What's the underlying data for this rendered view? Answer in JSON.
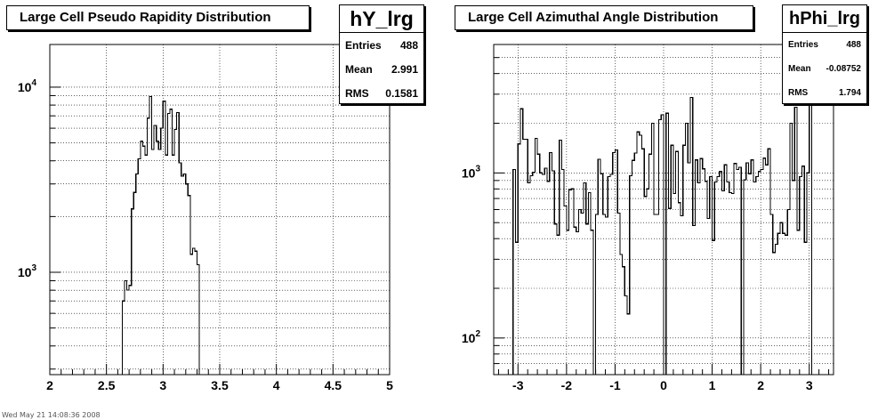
{
  "footer_text": "Wed May 21 14:08:36 2008",
  "chart_data": [
    {
      "type": "histogram",
      "title": "Large Cell Pseudo Rapidity Distribution",
      "stats": {
        "name": "hY_lrg",
        "entries_label": "Entries",
        "entries": "488",
        "mean_label": "Mean",
        "mean": "2.991",
        "rms_label": "RMS",
        "rms": "0.1581"
      },
      "xlim": [
        2,
        5
      ],
      "ylim": [
        280,
        17000
      ],
      "log_y": true,
      "x_ticks": [
        "2",
        "2.5",
        "3",
        "3.5",
        "4",
        "4.5",
        "5"
      ],
      "y_tick_labels": [
        {
          "v": 1000,
          "label": "10^3"
        },
        {
          "v": 10000,
          "label": "10^4"
        }
      ],
      "grid": true,
      "bins": [
        [
          2.6,
          2.64,
          0
        ],
        [
          2.64,
          2.66,
          700
        ],
        [
          2.66,
          2.68,
          900
        ],
        [
          2.68,
          2.7,
          800
        ],
        [
          2.7,
          2.72,
          850
        ],
        [
          2.72,
          2.74,
          2200
        ],
        [
          2.74,
          2.76,
          2700
        ],
        [
          2.76,
          2.78,
          3400
        ],
        [
          2.78,
          2.8,
          4100
        ],
        [
          2.8,
          2.82,
          5100
        ],
        [
          2.82,
          2.84,
          4800
        ],
        [
          2.84,
          2.86,
          4300
        ],
        [
          2.86,
          2.88,
          6800
        ],
        [
          2.88,
          2.9,
          8900
        ],
        [
          2.9,
          2.92,
          4600
        ],
        [
          2.92,
          2.94,
          6200
        ],
        [
          2.94,
          2.96,
          5100
        ],
        [
          2.96,
          2.98,
          4600
        ],
        [
          2.98,
          3.0,
          6000
        ],
        [
          3.0,
          3.02,
          8400
        ],
        [
          3.02,
          3.04,
          4300
        ],
        [
          3.04,
          3.06,
          7200
        ],
        [
          3.06,
          3.08,
          7600
        ],
        [
          3.08,
          3.1,
          4300
        ],
        [
          3.1,
          3.12,
          5900
        ],
        [
          3.12,
          3.14,
          7300
        ],
        [
          3.14,
          3.16,
          3900
        ],
        [
          3.16,
          3.18,
          3300
        ],
        [
          3.18,
          3.2,
          3400
        ],
        [
          3.2,
          3.22,
          3000
        ],
        [
          3.22,
          3.24,
          2600
        ],
        [
          3.24,
          3.26,
          1250
        ],
        [
          3.26,
          3.28,
          1350
        ],
        [
          3.28,
          3.3,
          1300
        ],
        [
          3.3,
          3.32,
          1100
        ],
        [
          3.32,
          3.34,
          200
        ]
      ]
    },
    {
      "type": "histogram",
      "title": "Large Cell Azimuthal Angle Distribution",
      "stats": {
        "name": "hPhi_lrg",
        "entries_label": "Entries",
        "entries": "488",
        "mean_label": "Mean",
        "mean": "-0.08752",
        "rms_label": "RMS",
        "rms": "1.794"
      },
      "xlim": [
        -3.5,
        3.5
      ],
      "ylim": [
        60,
        6000
      ],
      "log_y": true,
      "x_ticks": [
        "-3",
        "-2",
        "-1",
        "0",
        "1",
        "2",
        "3"
      ],
      "y_tick_labels": [
        {
          "v": 100,
          "label": "10^2"
        },
        {
          "v": 1000,
          "label": "10^3"
        }
      ],
      "grid": true,
      "bins": [
        [
          -3.16,
          -3.1,
          40
        ],
        [
          -3.1,
          -3.05,
          1050
        ],
        [
          -3.05,
          -3.0,
          380
        ],
        [
          -3.0,
          -2.95,
          1500
        ],
        [
          -2.95,
          -2.9,
          2450
        ],
        [
          -2.9,
          -2.8,
          1600
        ],
        [
          -2.8,
          -2.75,
          870
        ],
        [
          -2.75,
          -2.7,
          960
        ],
        [
          -2.7,
          -2.65,
          1010
        ],
        [
          -2.65,
          -2.6,
          1620
        ],
        [
          -2.6,
          -2.55,
          1300
        ],
        [
          -2.55,
          -2.5,
          1000
        ],
        [
          -2.5,
          -2.45,
          980
        ],
        [
          -2.45,
          -2.4,
          1070
        ],
        [
          -2.4,
          -2.35,
          890
        ],
        [
          -2.35,
          -2.3,
          1330
        ],
        [
          -2.3,
          -2.25,
          1030
        ],
        [
          -2.25,
          -2.2,
          490
        ],
        [
          -2.2,
          -2.15,
          420
        ],
        [
          -2.15,
          -2.1,
          1580
        ],
        [
          -2.1,
          -2.05,
          1050
        ],
        [
          -2.05,
          -2.0,
          630
        ],
        [
          -2.0,
          -1.95,
          450
        ],
        [
          -1.95,
          -1.9,
          790
        ],
        [
          -1.9,
          -1.85,
          800
        ],
        [
          -1.85,
          -1.8,
          470
        ],
        [
          -1.8,
          -1.75,
          440
        ],
        [
          -1.75,
          -1.7,
          600
        ],
        [
          -1.7,
          -1.65,
          570
        ],
        [
          -1.65,
          -1.6,
          870
        ],
        [
          -1.6,
          -1.55,
          490
        ],
        [
          -1.55,
          -1.5,
          760
        ],
        [
          -1.5,
          -1.45,
          450
        ],
        [
          -1.45,
          -1.4,
          35
        ],
        [
          -1.4,
          -1.35,
          560
        ],
        [
          -1.35,
          -1.3,
          1210
        ],
        [
          -1.3,
          -1.25,
          990
        ],
        [
          -1.25,
          -1.2,
          560
        ],
        [
          -1.2,
          -1.15,
          540
        ],
        [
          -1.15,
          -1.1,
          950
        ],
        [
          -1.1,
          -1.05,
          980
        ],
        [
          -1.05,
          -1.0,
          1330
        ],
        [
          -1.0,
          -0.95,
          1380
        ],
        [
          -0.95,
          -0.9,
          570
        ],
        [
          -0.9,
          -0.85,
          320
        ],
        [
          -0.85,
          -0.8,
          270
        ],
        [
          -0.8,
          -0.75,
          180
        ],
        [
          -0.75,
          -0.7,
          140
        ],
        [
          -0.7,
          -0.65,
          960
        ],
        [
          -0.65,
          -0.6,
          1190
        ],
        [
          -0.6,
          -0.55,
          1320
        ],
        [
          -0.55,
          -0.5,
          1770
        ],
        [
          -0.5,
          -0.45,
          1690
        ],
        [
          -0.45,
          -0.4,
          1400
        ],
        [
          -0.4,
          -0.35,
          720
        ],
        [
          -0.35,
          -0.3,
          800
        ],
        [
          -0.3,
          -0.25,
          1300
        ],
        [
          -0.25,
          -0.2,
          2000
        ],
        [
          -0.2,
          -0.15,
          560
        ],
        [
          -0.15,
          -0.1,
          560
        ],
        [
          -0.1,
          -0.05,
          2100
        ],
        [
          -0.05,
          0.0,
          2250
        ],
        [
          0.0,
          0.05,
          40
        ],
        [
          0.05,
          0.1,
          2300
        ],
        [
          0.1,
          0.15,
          610
        ],
        [
          0.15,
          0.2,
          1470
        ],
        [
          0.2,
          0.25,
          750
        ],
        [
          0.25,
          0.3,
          1350
        ],
        [
          0.3,
          0.35,
          660
        ],
        [
          0.35,
          0.4,
          550
        ],
        [
          0.4,
          0.45,
          1470
        ],
        [
          0.45,
          0.5,
          2000
        ],
        [
          0.5,
          0.55,
          1150
        ],
        [
          0.55,
          0.6,
          2870
        ],
        [
          0.6,
          0.65,
          480
        ],
        [
          0.65,
          0.7,
          1200
        ],
        [
          0.7,
          0.75,
          870
        ],
        [
          0.75,
          0.8,
          1220
        ],
        [
          0.8,
          0.85,
          1060
        ],
        [
          0.85,
          0.9,
          890
        ],
        [
          0.9,
          0.95,
          530
        ],
        [
          0.95,
          1.0,
          950
        ],
        [
          1.0,
          1.05,
          390
        ],
        [
          1.05,
          1.1,
          880
        ],
        [
          1.1,
          1.15,
          950
        ],
        [
          1.15,
          1.2,
          1020
        ],
        [
          1.2,
          1.25,
          780
        ],
        [
          1.25,
          1.3,
          1120
        ],
        [
          1.3,
          1.35,
          880
        ],
        [
          1.35,
          1.4,
          760
        ],
        [
          1.4,
          1.45,
          750
        ],
        [
          1.45,
          1.5,
          1140
        ],
        [
          1.5,
          1.55,
          1050
        ],
        [
          1.55,
          1.6,
          1080
        ],
        [
          1.6,
          1.65,
          40
        ],
        [
          1.65,
          1.7,
          910
        ],
        [
          1.7,
          1.75,
          1150
        ],
        [
          1.75,
          1.8,
          990
        ],
        [
          1.8,
          1.85,
          1200
        ],
        [
          1.85,
          1.9,
          880
        ],
        [
          1.9,
          1.95,
          950
        ],
        [
          1.95,
          2.0,
          1020
        ],
        [
          2.0,
          2.05,
          1050
        ],
        [
          2.05,
          2.1,
          1230
        ],
        [
          2.1,
          2.15,
          1120
        ],
        [
          2.15,
          2.2,
          1400
        ],
        [
          2.2,
          2.25,
          560
        ],
        [
          2.25,
          2.3,
          330
        ],
        [
          2.3,
          2.35,
          370
        ],
        [
          2.35,
          2.4,
          430
        ],
        [
          2.4,
          2.45,
          500
        ],
        [
          2.45,
          2.5,
          430
        ],
        [
          2.5,
          2.55,
          420
        ],
        [
          2.55,
          2.6,
          600
        ],
        [
          2.6,
          2.65,
          2000
        ],
        [
          2.65,
          2.7,
          900
        ],
        [
          2.7,
          2.75,
          2500
        ],
        [
          2.75,
          2.8,
          450
        ],
        [
          2.8,
          2.85,
          950
        ],
        [
          2.85,
          2.9,
          1100
        ],
        [
          2.9,
          2.95,
          380
        ],
        [
          2.95,
          3.0,
          1000
        ],
        [
          3.0,
          3.05,
          2800
        ],
        [
          3.05,
          3.1,
          40
        ]
      ]
    }
  ]
}
